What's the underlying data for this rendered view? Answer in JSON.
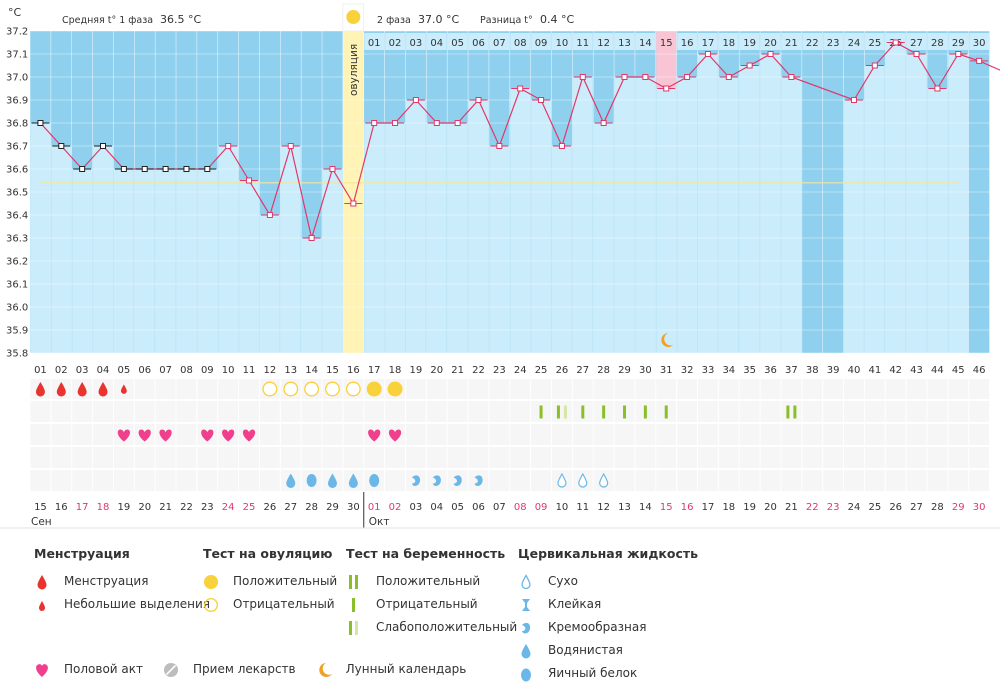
{
  "header": {
    "unit": "°C",
    "phase1_label": "Средняя t° 1 фаза",
    "phase1_value": "36.5 °C",
    "phase2_label": "2 фаза",
    "phase2_value": "37.0 °C",
    "diff_label": "Разница t°",
    "diff_value": "0.4 °C",
    "ovulation_label": "овуляция"
  },
  "colors": {
    "bg_blue": "#8fd0ef",
    "column_light": "#cbedfb",
    "column_dark": "#8fd0ef",
    "ovulation": "#fff3b5",
    "highlight_pink": "#f9c4d4",
    "line": "#e0386a",
    "baseline": "#f0e6a0",
    "blood": "#e8332f",
    "test_yellow": "#f8d13b",
    "preg_green": "#8bbf2a",
    "heart": "#f03f8c",
    "fluid_blue": "#6ab7e8"
  },
  "chart_data": {
    "type": "line",
    "ylabel": "°C",
    "ylim": [
      35.8,
      37.2
    ],
    "yticks": [
      "37.2",
      "37.1",
      "37.0",
      "36.9",
      "36.8",
      "36.7",
      "36.6",
      "36.5",
      "36.4",
      "36.3",
      "36.2",
      "36.1",
      "36.0",
      "35.9",
      "35.8"
    ],
    "cycle_days": [
      "01",
      "02",
      "03",
      "04",
      "05",
      "06",
      "07",
      "08",
      "09",
      "10",
      "11",
      "12",
      "13",
      "14",
      "15",
      "16",
      "17",
      "18",
      "19",
      "20",
      "21",
      "22",
      "23",
      "24",
      "25",
      "26",
      "27",
      "28",
      "29",
      "30",
      "31",
      "32",
      "33",
      "34",
      "35",
      "36",
      "37",
      "38",
      "39",
      "40",
      "41",
      "42",
      "43",
      "44",
      "45",
      "46"
    ],
    "top_dates": [
      "",
      "",
      "",
      "",
      "",
      "",
      "",
      "",
      "",
      "",
      "",
      "",
      "",
      "",
      "",
      "",
      "01",
      "02",
      "03",
      "04",
      "05",
      "06",
      "07",
      "08",
      "09",
      "10",
      "11",
      "12",
      "13",
      "14",
      "15",
      "16",
      "17",
      "18",
      "19",
      "20",
      "21",
      "22",
      "23",
      "24",
      "25",
      "26",
      "27",
      "28",
      "29",
      "30"
    ],
    "dates": [
      "15",
      "16",
      "17",
      "18",
      "19",
      "20",
      "21",
      "22",
      "23",
      "24",
      "25",
      "26",
      "27",
      "28",
      "29",
      "30",
      "01",
      "02",
      "03",
      "04",
      "05",
      "06",
      "07",
      "08",
      "09",
      "10",
      "11",
      "12",
      "13",
      "14",
      "15",
      "16",
      "17",
      "18",
      "19",
      "20",
      "21",
      "22",
      "23",
      "24",
      "25",
      "26",
      "27",
      "28",
      "29",
      "30"
    ],
    "red_date_indices": [
      2,
      3,
      9,
      10,
      16,
      17,
      23,
      24,
      30,
      31,
      37,
      38,
      44,
      45
    ],
    "months": [
      {
        "label": "Сен",
        "index": 0
      },
      {
        "label": "Окт",
        "index": 16
      }
    ],
    "ovulation_day": 16,
    "highlight_day": 31,
    "dark_columns": [
      38,
      39,
      46
    ],
    "temperatures": [
      36.8,
      36.7,
      36.6,
      36.7,
      36.6,
      36.6,
      36.6,
      36.6,
      36.6,
      36.7,
      36.55,
      36.4,
      36.7,
      36.3,
      36.6,
      36.45,
      36.8,
      36.8,
      36.9,
      36.8,
      36.8,
      36.9,
      36.7,
      36.95,
      36.9,
      36.7,
      37.0,
      36.8,
      37.0,
      37.0,
      36.95,
      37.0,
      37.1,
      37.0,
      37.05,
      37.1,
      37.0,
      null,
      null,
      36.9,
      37.05,
      37.15,
      37.1,
      36.95,
      37.1,
      37.07
    ],
    "baseline": 36.54,
    "series": [
      {
        "values_ref": "temperatures"
      }
    ],
    "rows": {
      "menstruation": {
        "1": "heavy",
        "2": "heavy",
        "3": "heavy",
        "4": "heavy",
        "5": "light"
      },
      "ovulation_test": {
        "12": "neg",
        "13": "neg",
        "14": "neg",
        "15": "neg",
        "16": "neg",
        "17": "pos",
        "18": "pos"
      },
      "pregnancy_test": {
        "25": "neg",
        "26": "weak",
        "27": "neg",
        "28": "neg",
        "29": "neg",
        "30": "neg",
        "31": "neg",
        "37": "pos"
      },
      "sex": [
        5,
        6,
        7,
        9,
        10,
        11,
        17,
        18
      ],
      "fluid": {
        "13": "water",
        "14": "egg",
        "15": "water",
        "16": "water",
        "17": "egg",
        "19": "creamy",
        "20": "creamy",
        "21": "creamy",
        "22": "creamy",
        "26": "dry",
        "27": "dry",
        "28": "dry"
      },
      "moon": [
        31
      ]
    }
  },
  "legend": {
    "menstruation": {
      "title": "Менструация",
      "items": [
        "Менструация",
        "Небольшие выделения"
      ]
    },
    "ovulation_test": {
      "title": "Тест на овуляцию",
      "items": [
        "Положительный",
        "Отрицательный"
      ]
    },
    "pregnancy_test": {
      "title": "Тест на беременность",
      "items": [
        "Положительный",
        "Отрицательный",
        "Слабоположительный"
      ]
    },
    "fluid": {
      "title": "Цервикальная жидкость",
      "items": [
        "Сухо",
        "Клейкая",
        "Кремообразная",
        "Водянистая",
        "Яичный белок"
      ]
    },
    "bottom": [
      "Половой акт",
      "Прием лекарств",
      "Лунный календарь"
    ]
  }
}
